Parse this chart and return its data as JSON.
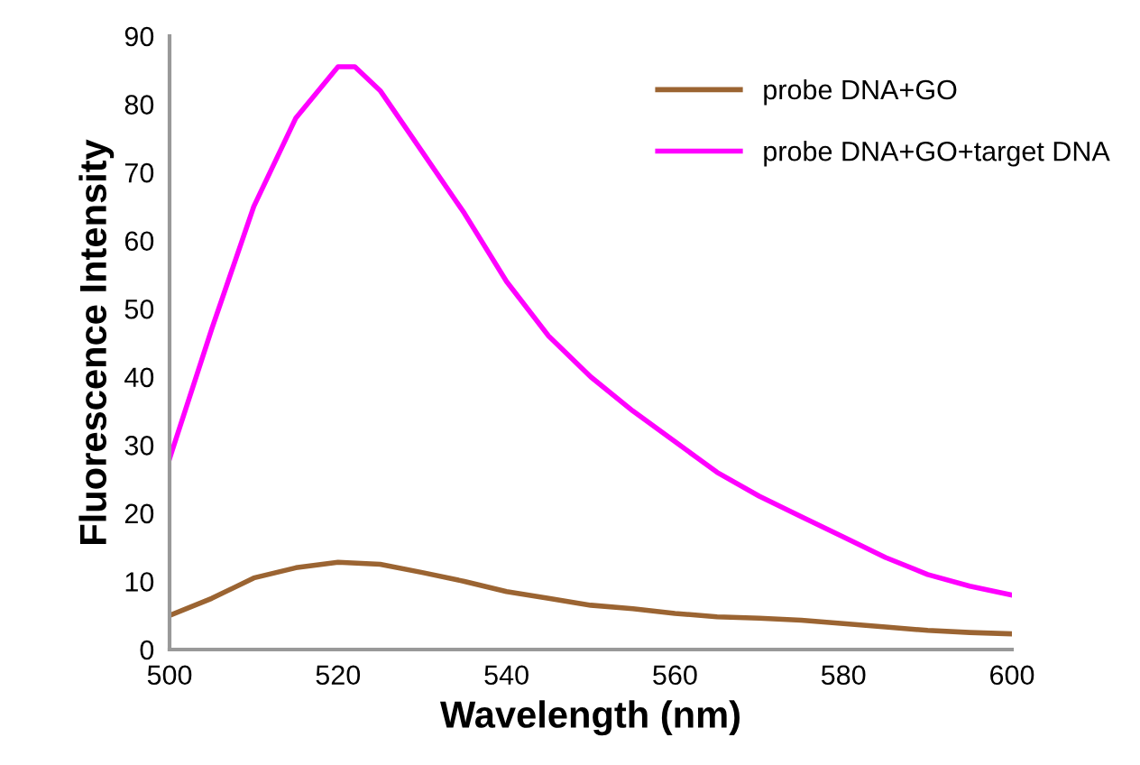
{
  "chart_data": {
    "type": "line",
    "xlabel": "Wavelength (nm)",
    "ylabel": "Fluorescence Intensity",
    "xlim": [
      500,
      600
    ],
    "xticks": [
      500,
      520,
      540,
      560,
      580,
      600
    ],
    "ylim": [
      0,
      90
    ],
    "yticks": [
      0,
      10,
      20,
      30,
      40,
      50,
      60,
      70,
      80,
      90
    ],
    "grid": false,
    "legend": "top right",
    "marker": "none",
    "line_style": "solid",
    "series": [
      {
        "name": "probe DNA+GO",
        "color": "#9b6432",
        "x": [
          500,
          505,
          510,
          515,
          520,
          525,
          530,
          535,
          540,
          545,
          550,
          555,
          560,
          565,
          570,
          575,
          580,
          585,
          590,
          595,
          600
        ],
        "values": [
          5,
          7.5,
          10.5,
          12,
          12.8,
          12.5,
          11.3,
          10,
          8.5,
          7.5,
          6.5,
          6,
          5.3,
          4.8,
          4.6,
          4.3,
          3.8,
          3.3,
          2.8,
          2.5,
          2.3
        ]
      },
      {
        "name": "probe DNA+GO+target DNA",
        "color": "#ff00ff",
        "x": [
          500,
          505,
          510,
          515,
          520,
          522,
          525,
          530,
          535,
          540,
          545,
          550,
          555,
          560,
          565,
          570,
          575,
          580,
          585,
          590,
          595,
          600
        ],
        "values": [
          28,
          47,
          65,
          78,
          85.5,
          85.5,
          82,
          73,
          64,
          54,
          46,
          40,
          35,
          30.5,
          26,
          22.5,
          19.5,
          16.5,
          13.5,
          11,
          9.3,
          8
        ]
      }
    ]
  }
}
